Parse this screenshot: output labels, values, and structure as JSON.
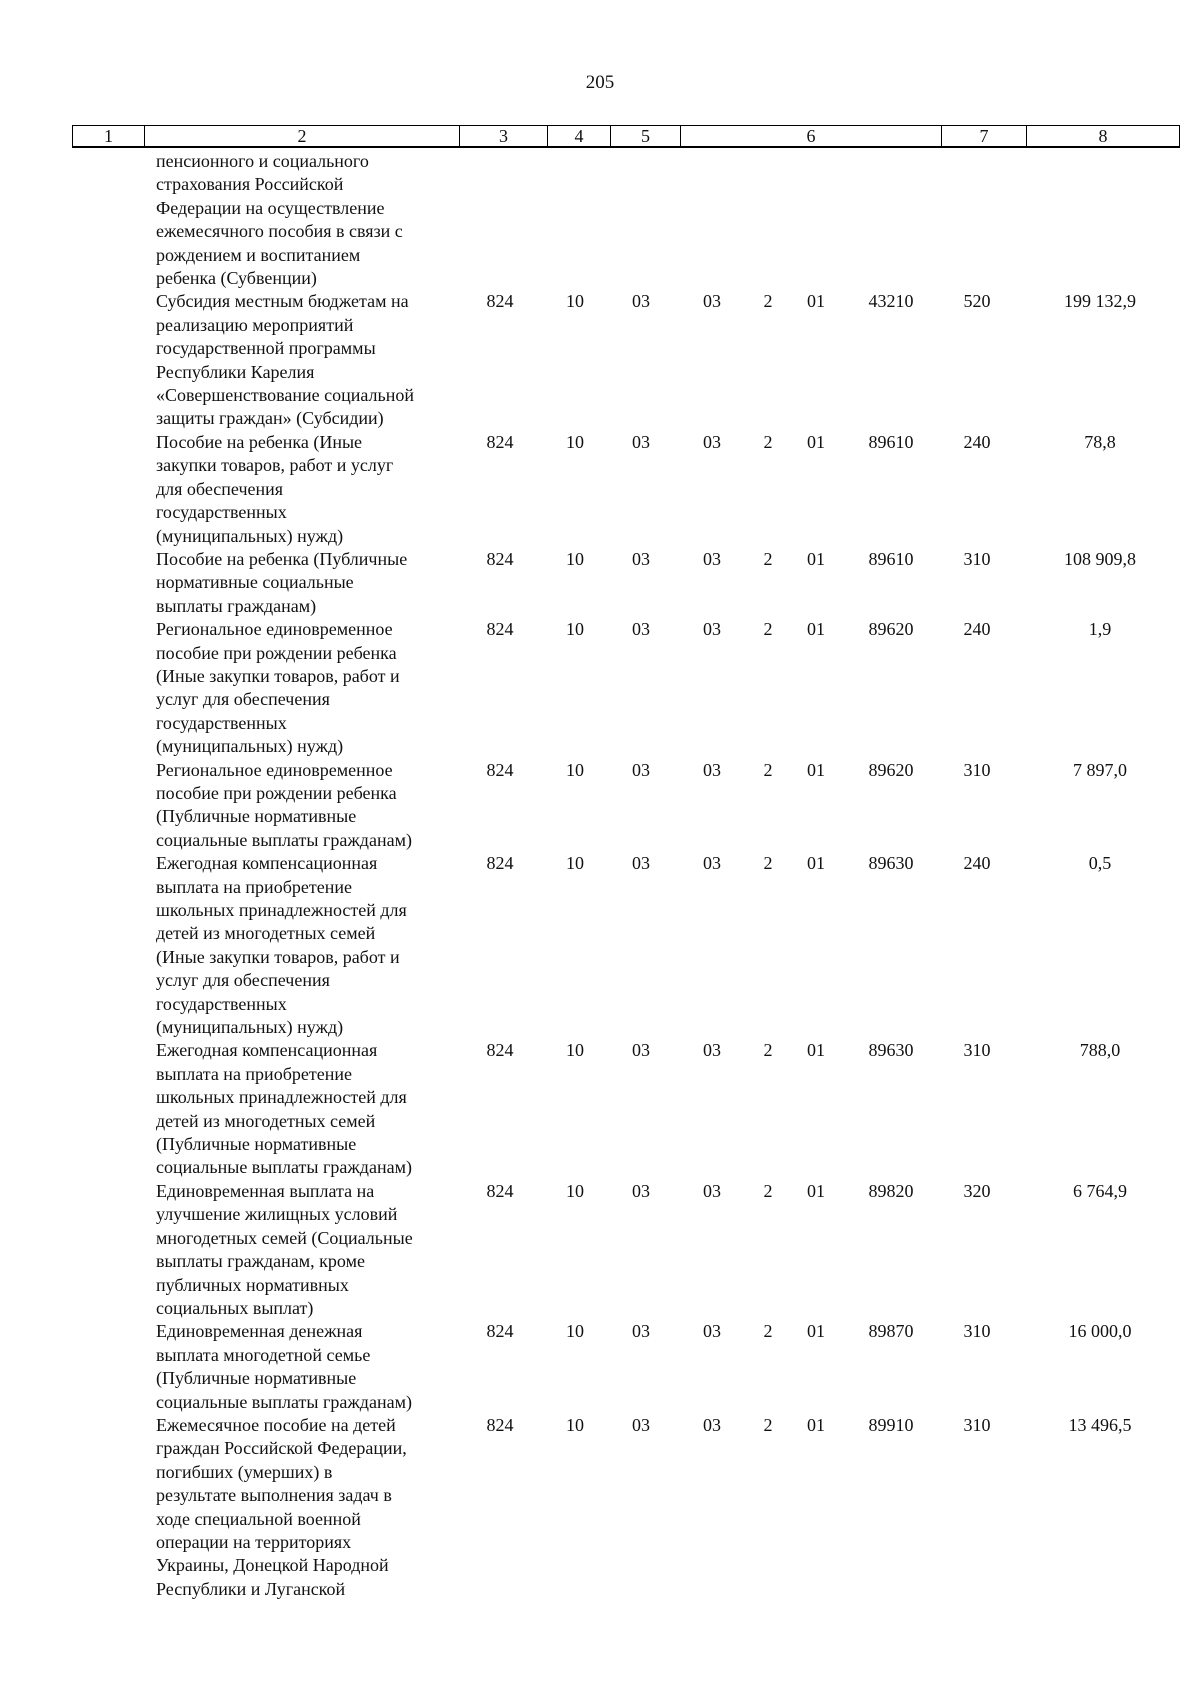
{
  "page_number": "205",
  "header": [
    "1",
    "2",
    "3",
    "4",
    "5",
    "6",
    "7",
    "8"
  ],
  "rows": [
    {
      "lines": [
        "пенсионного и социального",
        "страхования Российской",
        "Федерации на осуществление",
        "ежемесячного пособия в связи с",
        "рождением и воспитанием",
        "ребенка (Субвенции)"
      ],
      "codes": null
    },
    {
      "lines": [
        "Субсидия местным бюджетам на",
        "реализацию мероприятий",
        "государственной программы",
        "Республики Карелия",
        "«Совершенствование социальной",
        "защиты граждан» (Субсидии)"
      ],
      "codes": [
        "824",
        "10",
        "03",
        "03",
        "2",
        "01",
        "43210",
        "520",
        "199 132,9"
      ]
    },
    {
      "lines": [
        "Пособие на ребенка (Иные",
        "закупки товаров, работ и услуг",
        "для обеспечения",
        "государственных",
        "(муниципальных) нужд)"
      ],
      "codes": [
        "824",
        "10",
        "03",
        "03",
        "2",
        "01",
        "89610",
        "240",
        "78,8"
      ]
    },
    {
      "lines": [
        "Пособие на ребенка (Публичные",
        "нормативные социальные",
        "выплаты гражданам)"
      ],
      "codes": [
        "824",
        "10",
        "03",
        "03",
        "2",
        "01",
        "89610",
        "310",
        "108 909,8"
      ]
    },
    {
      "lines": [
        "Региональное единовременное",
        "пособие при рождении ребенка",
        "(Иные закупки товаров, работ и",
        "услуг для обеспечения",
        "государственных",
        "(муниципальных) нужд)"
      ],
      "codes": [
        "824",
        "10",
        "03",
        "03",
        "2",
        "01",
        "89620",
        "240",
        "1,9"
      ]
    },
    {
      "lines": [
        "Региональное единовременное",
        "пособие при рождении ребенка",
        "(Публичные нормативные",
        "социальные выплаты гражданам)"
      ],
      "codes": [
        "824",
        "10",
        "03",
        "03",
        "2",
        "01",
        "89620",
        "310",
        "7 897,0"
      ]
    },
    {
      "lines": [
        "Ежегодная компенсационная",
        "выплата на приобретение",
        "школьных принадлежностей для",
        "детей из многодетных семей",
        "(Иные закупки товаров, работ и",
        "услуг для обеспечения",
        "государственных",
        "(муниципальных) нужд)"
      ],
      "codes": [
        "824",
        "10",
        "03",
        "03",
        "2",
        "01",
        "89630",
        "240",
        "0,5"
      ]
    },
    {
      "lines": [
        "Ежегодная компенсационная",
        "выплата на приобретение",
        "школьных принадлежностей для",
        "детей из многодетных семей",
        "(Публичные нормативные",
        "социальные выплаты гражданам)"
      ],
      "codes": [
        "824",
        "10",
        "03",
        "03",
        "2",
        "01",
        "89630",
        "310",
        "788,0"
      ]
    },
    {
      "lines": [
        "Единовременная выплата на",
        "улучшение жилищных условий",
        "многодетных семей (Социальные",
        "выплаты гражданам, кроме",
        "публичных нормативных",
        "социальных выплат)"
      ],
      "codes": [
        "824",
        "10",
        "03",
        "03",
        "2",
        "01",
        "89820",
        "320",
        "6 764,9"
      ]
    },
    {
      "lines": [
        "Единовременная денежная",
        "выплата многодетной семье",
        "(Публичные нормативные",
        "социальные выплаты гражданам)"
      ],
      "codes": [
        "824",
        "10",
        "03",
        "03",
        "2",
        "01",
        "89870",
        "310",
        "16 000,0"
      ]
    },
    {
      "lines": [
        "Ежемесячное пособие на детей",
        "граждан Российской Федерации,",
        "погибших (умерших) в",
        "результате выполнения задач в",
        "ходе специальной военной",
        "операции на территориях",
        "Украины, Донецкой Народной",
        "Республики и Луганской"
      ],
      "codes": [
        "824",
        "10",
        "03",
        "03",
        "2",
        "01",
        "89910",
        "310",
        "13 496,5"
      ]
    }
  ]
}
